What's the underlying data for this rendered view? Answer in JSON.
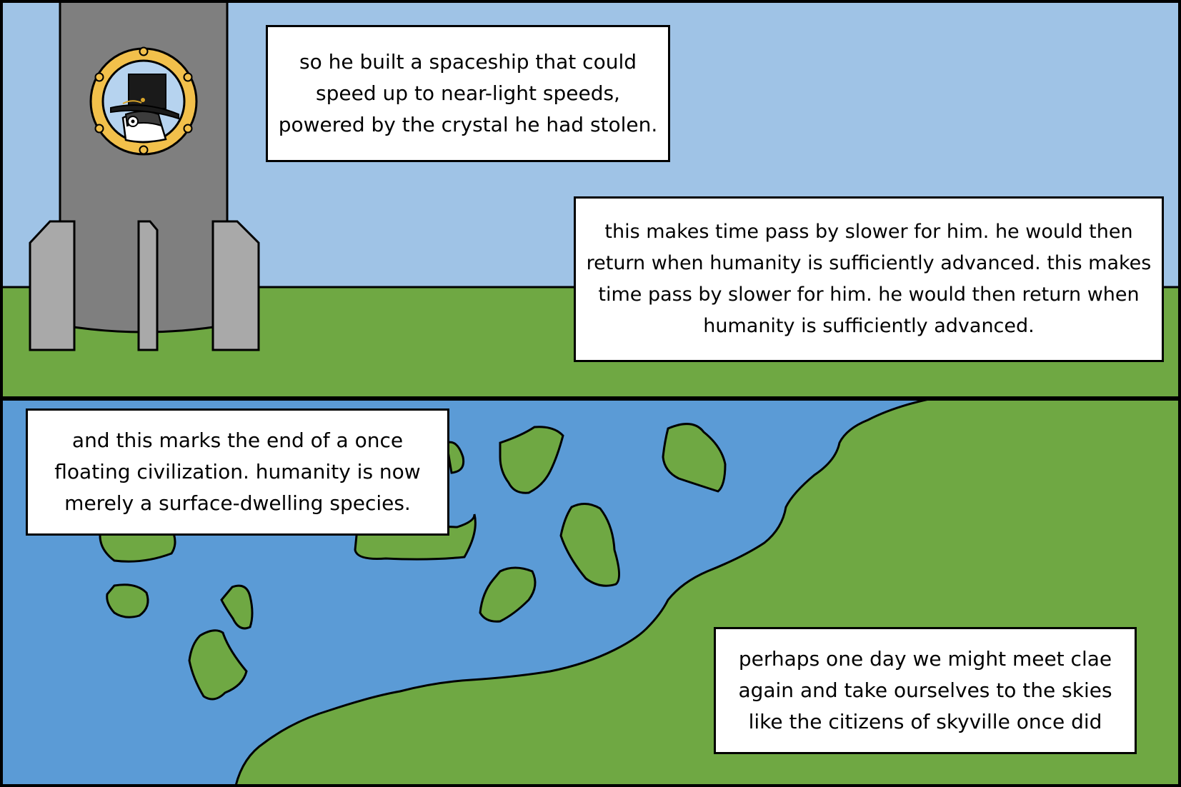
{
  "colors": {
    "sky": "#9fc3e6",
    "grass": "#6fa843",
    "water": "#5b9bd6",
    "rocket_body": "#7f7f7f",
    "rocket_fin": "#a9a9a9",
    "porthole_rim": "#f2c04b",
    "outline": "#000000",
    "caption_bg": "#ffffff"
  },
  "panels": [
    {
      "name": "spaceship-launch",
      "captions": [
        "so he built a spaceship that could speed up to near-light speeds, powered by the crystal he had stolen.",
        "this makes time pass by slower for him. he would then return when humanity is sufficiently advanced. this makes time pass by slower for him. he would then return when humanity is sufficiently advanced."
      ]
    },
    {
      "name": "fallen-islands",
      "captions": [
        "and this marks the end of a once floating civilization. humanity is now merely a surface-dwelling species.",
        "perhaps one day we might meet clae again and take ourselves to the skies like the citizens of skyville once did"
      ]
    }
  ]
}
